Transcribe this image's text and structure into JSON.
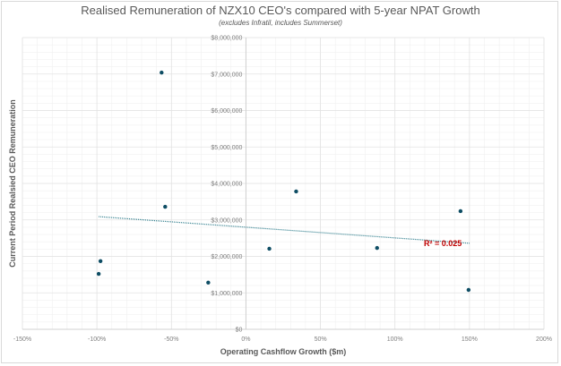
{
  "chart_data": {
    "type": "scatter",
    "title": "Realised Remuneration of NZX10 CEO's compared with 5-year NPAT Growth",
    "subtitle": "(excludes Infratil, includes Summerset)",
    "xlabel": "Operating Cashflow Growth ($m)",
    "ylabel": "Current Period Realsied CEO Remuneration",
    "xlim": [
      -150,
      200
    ],
    "ylim": [
      0,
      8000000
    ],
    "x_ticks": [
      -150,
      -100,
      -50,
      0,
      50,
      100,
      150,
      200
    ],
    "x_tick_labels": [
      "-150%",
      "-100%",
      "-50%",
      "0%",
      "50%",
      "100%",
      "150%",
      "200%"
    ],
    "y_ticks": [
      0,
      1000000,
      2000000,
      3000000,
      4000000,
      5000000,
      6000000,
      7000000,
      8000000
    ],
    "y_tick_labels": [
      "$0",
      "$1,000,000",
      "$2,000,000",
      "$3,000,000",
      "$4,000,000",
      "$5,000,000",
      "$6,000,000",
      "$7,000,000",
      "$8,000,000"
    ],
    "grid": true,
    "minor_grid": true,
    "series": [
      {
        "name": "CEO Remuneration",
        "color": "#0e4d64",
        "points": [
          {
            "x": -56.6,
            "y": 7040000
          },
          {
            "x": -54.2,
            "y": 3360000
          },
          {
            "x": -97.6,
            "y": 1870000
          },
          {
            "x": -98.8,
            "y": 1520000
          },
          {
            "x": -25.3,
            "y": 1280000
          },
          {
            "x": 33.7,
            "y": 3780000
          },
          {
            "x": 15.7,
            "y": 2210000
          },
          {
            "x": 88.0,
            "y": 2230000
          },
          {
            "x": 144.0,
            "y": 3240000
          },
          {
            "x": 149.4,
            "y": 1080000
          }
        ]
      }
    ],
    "trendline": {
      "type": "linear",
      "color": "#2e7d8c",
      "style": "dotted",
      "x_start": -98.8,
      "y_start": 3090000,
      "x_end": 150,
      "y_end": 2360000,
      "r2_label": "R² = 0.025",
      "r2_color": "#c00000"
    },
    "legend": "none"
  }
}
